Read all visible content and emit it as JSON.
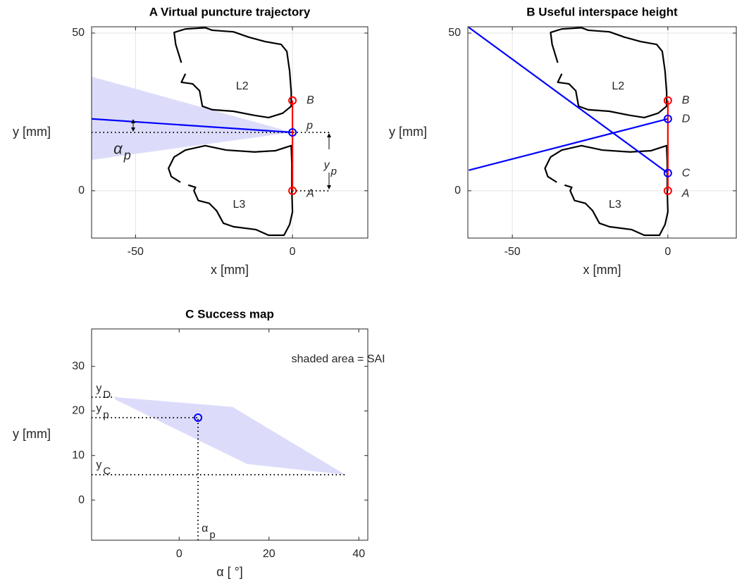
{
  "chart_data": [
    {
      "type": "line",
      "title": "A  Virtual puncture trajectory",
      "xlabel": "x [mm]",
      "ylabel": "y [mm]",
      "xlim": [
        -64,
        24
      ],
      "ylim": [
        -15,
        52
      ],
      "xticks": [
        -50,
        0
      ],
      "yticks": [
        0,
        50
      ],
      "grid": true,
      "series": [
        {
          "style": "area",
          "color": "#dcdcfa",
          "x": [
            -64,
            0,
            -64
          ],
          "y": [
            36.2,
            18.5,
            9.8
          ]
        },
        {
          "style": "line",
          "color": "#000000",
          "x": [
            -35.4,
            -37.2,
            -37.7,
            -34.1,
            -27.8,
            -25.6,
            -18.8,
            -13.9,
            -8.7,
            -3.6,
            -1.8,
            -0.9,
            -0.4,
            -0.4,
            -3.1,
            -7.6,
            -12.1,
            -18.8,
            -25.6,
            -28.7,
            -29.6,
            -31.8,
            -35.4,
            -34.1
          ],
          "y": [
            40.6,
            46.4,
            50.2,
            51.3,
            51.7,
            50.9,
            50.4,
            48.7,
            47.3,
            46.4,
            44.2,
            37.9,
            31.3,
            26.8,
            24.6,
            23.2,
            23.9,
            25.2,
            25.7,
            26.8,
            31.7,
            33.9,
            34.4,
            37.1
          ]
        },
        {
          "style": "line",
          "color": "#000000",
          "x": [
            -35.7,
            -38.6,
            -39.5,
            -37.7,
            -34.1,
            -27.8,
            -21.1,
            -12.1,
            -5.4,
            -2.0,
            -0.4,
            -0.2,
            -0.2,
            0,
            -0.9,
            -2.7,
            -7.6,
            -11.7,
            -18.8,
            -22.0,
            -24.2,
            -26.5,
            -30.0,
            -31.4,
            -30.9,
            -33.2
          ],
          "y": [
            2.7,
            4.5,
            7.1,
            10.7,
            12.9,
            14.3,
            12.9,
            12.3,
            12.7,
            13.8,
            14.3,
            8.9,
            0,
            -6.7,
            -10.7,
            -14.1,
            -14.1,
            -12.3,
            -11.4,
            -10.3,
            -6.3,
            -4.0,
            -3.1,
            0,
            1.1,
            1.8
          ]
        },
        {
          "style": "dotted",
          "color": "#000000",
          "x": [
            -64,
            12
          ],
          "y": [
            18.5,
            18.5
          ]
        },
        {
          "style": "dotted",
          "color": "#000000",
          "x": [
            0,
            12
          ],
          "y": [
            0,
            0
          ]
        },
        {
          "style": "line",
          "color": "#0000ff",
          "x": [
            -64,
            0
          ],
          "y": [
            22.8,
            18.5
          ]
        },
        {
          "style": "line",
          "color": "#ff0000",
          "x": [
            0,
            0
          ],
          "y": [
            0,
            28.6
          ]
        },
        {
          "style": "marker",
          "color": "#ff0000",
          "x": [
            0,
            0
          ],
          "y": [
            0,
            28.6
          ]
        },
        {
          "style": "marker",
          "color": "#0000ff",
          "x": [
            0
          ],
          "y": [
            18.5
          ]
        }
      ],
      "annotations": [
        {
          "text": "L2"
        },
        {
          "text": "L3"
        },
        {
          "text": "B",
          "italic": true
        },
        {
          "text": "p",
          "italic": true
        },
        {
          "text": "A",
          "italic": true
        },
        {
          "text": "α",
          "sub": "p",
          "italic": true
        },
        {
          "text": "y",
          "sub": "p",
          "italic": true
        }
      ]
    },
    {
      "type": "line",
      "title": "B  Useful interspace height",
      "xlabel": "x [mm]",
      "ylabel": "y [mm]",
      "xlim": [
        -64.3,
        22
      ],
      "ylim": [
        -15,
        52
      ],
      "xticks": [
        -50,
        0
      ],
      "yticks": [
        0,
        50
      ],
      "grid": true,
      "series": [
        {
          "style": "line",
          "color": "#000000",
          "x": [
            -35.4,
            -37.2,
            -37.7,
            -34.1,
            -27.8,
            -25.6,
            -18.8,
            -13.9,
            -8.7,
            -3.6,
            -1.8,
            -0.9,
            -0.4,
            -0.4,
            -3.1,
            -7.6,
            -12.1,
            -18.8,
            -25.6,
            -28.7,
            -29.6,
            -31.8,
            -35.4,
            -34.1
          ],
          "y": [
            40.6,
            46.4,
            50.2,
            51.3,
            51.7,
            50.9,
            50.4,
            48.7,
            47.3,
            46.4,
            44.2,
            37.9,
            31.3,
            26.8,
            24.6,
            23.2,
            23.9,
            25.2,
            25.7,
            26.8,
            31.7,
            33.9,
            34.4,
            37.1
          ]
        },
        {
          "style": "line",
          "color": "#000000",
          "x": [
            -35.7,
            -38.6,
            -39.5,
            -37.7,
            -34.1,
            -27.8,
            -21.1,
            -12.1,
            -5.4,
            -2.0,
            -0.4,
            -0.2,
            -0.2,
            0,
            -0.9,
            -2.7,
            -7.6,
            -11.7,
            -18.8,
            -22.0,
            -24.2,
            -26.5,
            -30.0,
            -31.4,
            -30.9,
            -33.2
          ],
          "y": [
            2.7,
            4.5,
            7.1,
            10.7,
            12.9,
            14.3,
            12.9,
            12.3,
            12.7,
            13.8,
            14.3,
            8.9,
            0,
            -6.7,
            -10.7,
            -14.1,
            -14.1,
            -12.3,
            -11.4,
            -10.3,
            -6.3,
            -4.0,
            -3.1,
            0,
            1.1,
            1.8
          ]
        },
        {
          "style": "line",
          "color": "#0000ff",
          "x": [
            -64,
            0
          ],
          "y": [
            51.8,
            5.6
          ]
        },
        {
          "style": "line",
          "color": "#0000ff",
          "x": [
            -64,
            0
          ],
          "y": [
            6.5,
            22.8
          ]
        },
        {
          "style": "line",
          "color": "#ff0000",
          "x": [
            0,
            0
          ],
          "y": [
            0,
            28.6
          ]
        },
        {
          "style": "marker",
          "color": "#ff0000",
          "x": [
            0,
            0
          ],
          "y": [
            0,
            28.6
          ]
        },
        {
          "style": "marker",
          "color": "#0000ff",
          "x": [
            0,
            0
          ],
          "y": [
            5.6,
            22.8
          ]
        }
      ],
      "annotations": [
        {
          "text": "L2"
        },
        {
          "text": "L3"
        },
        {
          "text": "B",
          "italic": true
        },
        {
          "text": "D",
          "italic": true
        },
        {
          "text": "C",
          "italic": true
        },
        {
          "text": "A",
          "italic": true
        }
      ]
    },
    {
      "type": "line",
      "title": "C  Success map",
      "xlabel": "α [ °]",
      "ylabel": "y [mm]",
      "xlim": [
        -19.5,
        42
      ],
      "ylim": [
        -9,
        38.4
      ],
      "xticks": [
        0,
        20,
        40
      ],
      "yticks": [
        0,
        10,
        20,
        30
      ],
      "grid": false,
      "series": [
        {
          "style": "area",
          "color": "#dcdcfa",
          "x": [
            -14.3,
            11.9,
            37.0,
            15.1,
            -14.3
          ],
          "y": [
            23.1,
            20.9,
            5.7,
            8.1,
            22.6
          ]
        },
        {
          "style": "dotted",
          "color": "#000000",
          "x": [
            -19.5,
            -14.3
          ],
          "y": [
            23.1,
            23.1
          ]
        },
        {
          "style": "dotted",
          "color": "#000000",
          "x": [
            -19.5,
            4.2
          ],
          "y": [
            18.5,
            18.5
          ]
        },
        {
          "style": "dotted",
          "color": "#000000",
          "x": [
            -19.5,
            37.0
          ],
          "y": [
            5.7,
            5.7
          ]
        },
        {
          "style": "dotted",
          "color": "#000000",
          "x": [
            4.2,
            4.2
          ],
          "y": [
            -9,
            18.5
          ]
        },
        {
          "style": "marker",
          "color": "#0000ff",
          "x": [
            4.2
          ],
          "y": [
            18.5
          ]
        }
      ],
      "annotations": [
        {
          "text": "shaded area = SAI"
        },
        {
          "text": "y",
          "sub": "D"
        },
        {
          "text": "y",
          "sub": "p"
        },
        {
          "text": "y",
          "sub": "C"
        },
        {
          "text": "α",
          "sub": "p"
        }
      ]
    }
  ]
}
